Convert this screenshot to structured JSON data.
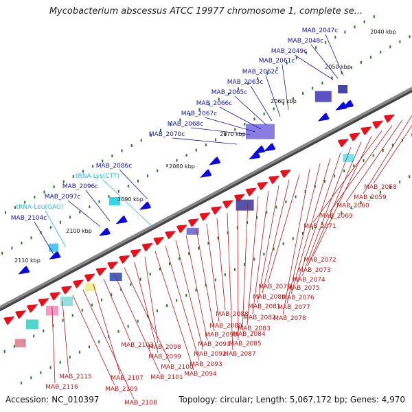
{
  "title": "Mycobacterium abscessus ATCC 19977 chromosome 1, complete se...",
  "accession": "Accession: NC_010397",
  "summary": "Topology: circular; Length: 5,067,172 bp; Genes: 4,970",
  "colors": {
    "forward_gene": "#e8101a",
    "reverse_gene": "#0a0ae0",
    "trna_label": "#29b6e6",
    "reverse_label": "#1010c0",
    "forward_label": "#d01010",
    "backbone": "#888888",
    "tick": "#1f7a1f"
  },
  "scale_labels": [
    "2040 kbp",
    "2050 kbp",
    "2060 kbp",
    "2070 kbp",
    "2080 kbp",
    "2090 kbp",
    "2100 kbp",
    "2110 kbp"
  ],
  "reverse_gene_labels": [
    "MAB_2047c",
    "MAB_2048c",
    "MAB_2049c",
    "MAB_2061c",
    "MAB_2062c",
    "MAB_2063c",
    "MAB_2065c",
    "MAB_2066c",
    "MAB_2067c",
    "MAB_2068c",
    "MAB_2070c",
    "MAB_2086c",
    "MAB_2096c",
    "MAB_2097c",
    "MAB_2104c"
  ],
  "trna_labels": [
    "tRNA-Lys(CTT)",
    "tRNA-Leu(GAG)"
  ],
  "forward_gene_labels": [
    "MAB_2058",
    "MAB_2059",
    "MAB_2060",
    "MAB_2069",
    "MAB_2071",
    "MAB_2072",
    "MAB_2073",
    "MAB_2074",
    "MAB_2075",
    "MAB_2076",
    "MAB_2077",
    "MAB_2078",
    "MAB_2079",
    "MAB_2080",
    "MAB_2081",
    "MAB_2082",
    "MAB_2083",
    "MAB_2084",
    "MAB_2085",
    "MAB_2087",
    "MAB_2088",
    "MAB_2089",
    "MAB_2090",
    "MAB_2091",
    "MAB_2092",
    "MAB_2093",
    "MAB_2094",
    "MAB_2098",
    "MAB_2099",
    "MAB_2100",
    "MAB_2101",
    "MAB_2103",
    "MAB_2107",
    "MAB_2108",
    "MAB_2109",
    "MAB_2115",
    "MAB_2116"
  ]
}
